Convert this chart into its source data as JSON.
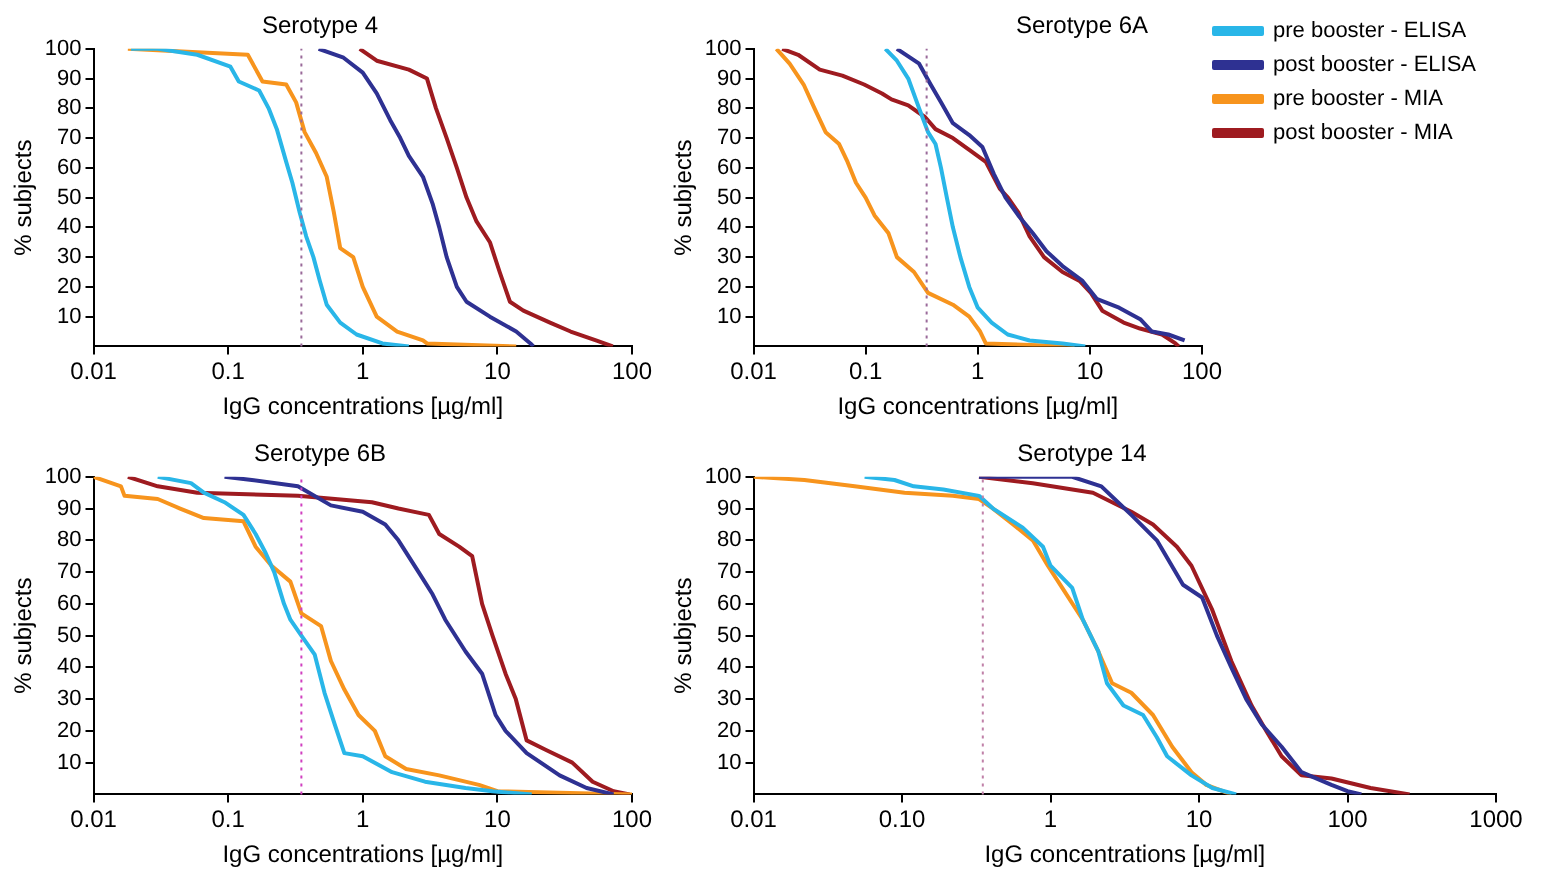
{
  "chart_data": [
    {
      "type": "line",
      "title": "Serotype 4",
      "xlabel": "IgG concentrations [µg/ml]",
      "ylabel": "% subjects",
      "log": "x",
      "grid": false,
      "legend": false,
      "marker": "none",
      "line_style": "solid",
      "xlim": [
        0.01,
        100
      ],
      "xticks": [
        0.01,
        0.1,
        1,
        10,
        100
      ],
      "ylim": [
        0,
        100
      ],
      "yticks": [
        10,
        20,
        30,
        40,
        50,
        60,
        70,
        80,
        90,
        100
      ],
      "ref_lines": [
        {
          "axis": "x",
          "value": 0.35,
          "color": "#9a6a9a",
          "line_style": "dotted"
        }
      ],
      "series": [
        {
          "color": "#29b6e8",
          "x": [
            0.019,
            0.03,
            0.059,
            0.104,
            0.12,
            0.17,
            0.2,
            0.23,
            0.27,
            0.3,
            0.34,
            0.38,
            0.43,
            0.48,
            0.54,
            0.68,
            0.9,
            1.4,
            2.2
          ],
          "values": [
            100,
            100,
            98,
            94,
            89,
            86,
            80,
            73,
            62,
            55,
            45,
            37,
            30,
            22,
            14,
            8,
            4,
            1,
            0
          ]
        },
        {
          "color": "#2e3192",
          "x": [
            0.47,
            0.72,
            1.0,
            1.27,
            1.6,
            1.9,
            2.2,
            2.8,
            3.3,
            3.7,
            4.2,
            5.0,
            5.9,
            8.8,
            13.8,
            17.6,
            18.5
          ],
          "values": [
            100,
            97,
            92,
            85,
            76,
            70,
            64,
            57,
            48,
            40,
            30,
            20,
            15,
            10,
            5,
            1,
            0
          ]
        },
        {
          "color": "#f7941d",
          "x": [
            0.018,
            0.14,
            0.18,
            0.27,
            0.32,
            0.37,
            0.45,
            0.54,
            0.61,
            0.68,
            0.85,
            1.0,
            1.27,
            1.8,
            2.8,
            3.0,
            13.8
          ],
          "values": [
            100,
            98,
            89,
            88,
            82,
            72,
            65,
            57,
            45,
            33,
            30,
            20,
            10,
            5,
            2,
            1,
            0
          ]
        },
        {
          "color": "#9e1b20",
          "x": [
            0.95,
            1.27,
            2.2,
            3.0,
            3.5,
            4.2,
            5.0,
            5.9,
            7.0,
            8.8,
            10.4,
            12.4,
            15.6,
            24.6,
            35,
            54,
            72
          ],
          "values": [
            100,
            96,
            93,
            90,
            80,
            70,
            60,
            50,
            42,
            35,
            25,
            15,
            12,
            8,
            5,
            2,
            0
          ]
        }
      ]
    },
    {
      "type": "line",
      "title": "Serotype 6A",
      "xlabel": "IgG concentrations [µg/ml]",
      "ylabel": "% subjects",
      "log": "x",
      "grid": false,
      "legend": "top right",
      "marker": "none",
      "line_style": "solid",
      "xlim": [
        0.01,
        100
      ],
      "xticks": [
        0.01,
        0.1,
        1,
        10,
        100
      ],
      "ylim": [
        0,
        100
      ],
      "yticks": [
        10,
        20,
        30,
        40,
        50,
        60,
        70,
        80,
        90,
        100
      ],
      "ref_lines": [
        {
          "axis": "x",
          "value": 0.35,
          "color": "#9a6a9a",
          "line_style": "dotted"
        }
      ],
      "series": [
        {
          "name": "pre booster - ELISA",
          "color": "#29b6e8",
          "x": [
            0.15,
            0.19,
            0.24,
            0.3,
            0.36,
            0.42,
            0.47,
            0.53,
            0.6,
            0.7,
            0.84,
            1.0,
            1.33,
            1.85,
            2.9,
            5.7,
            9.1
          ],
          "values": [
            100,
            96,
            90,
            80,
            72,
            68,
            60,
            50,
            40,
            30,
            20,
            13,
            8,
            4,
            2,
            1,
            0
          ]
        },
        {
          "name": "post booster - ELISA",
          "color": "#2e3192",
          "x": [
            0.19,
            0.3,
            0.38,
            0.47,
            0.6,
            0.84,
            1.1,
            1.39,
            1.77,
            2.3,
            3.1,
            4.1,
            5.7,
            8.6,
            11.5,
            18.2,
            28.4,
            35.7,
            50,
            70
          ],
          "values": [
            100,
            95,
            88,
            82,
            75,
            71,
            67,
            58,
            50,
            44,
            38,
            32,
            27,
            22,
            16,
            13,
            9,
            5,
            4,
            2
          ]
        },
        {
          "name": "pre booster - MIA",
          "color": "#f7941d",
          "x": [
            0.016,
            0.021,
            0.028,
            0.035,
            0.044,
            0.058,
            0.069,
            0.082,
            0.1,
            0.12,
            0.16,
            0.19,
            0.27,
            0.36,
            0.6,
            0.84,
            1.05,
            1.18,
            7.3
          ],
          "values": [
            100,
            95,
            88,
            80,
            72,
            68,
            62,
            55,
            50,
            44,
            38,
            30,
            25,
            18,
            14,
            10,
            5,
            1,
            0
          ]
        },
        {
          "name": "post booster - MIA",
          "color": "#9e1b20",
          "x": [
            0.018,
            0.025,
            0.039,
            0.062,
            0.097,
            0.14,
            0.17,
            0.24,
            0.34,
            0.42,
            0.6,
            0.84,
            1.18,
            1.57,
            1.86,
            2.3,
            2.9,
            3.9,
            5.7,
            8.1,
            10.2,
            12.9,
            20,
            28,
            44,
            58,
            62
          ],
          "values": [
            100,
            98,
            93,
            91,
            88,
            85,
            83,
            81,
            77,
            73,
            70,
            66,
            62,
            53,
            50,
            45,
            37,
            30,
            25,
            22,
            18,
            12,
            8,
            6,
            4,
            1,
            0
          ]
        }
      ]
    },
    {
      "type": "line",
      "title": "Serotype 6B",
      "xlabel": "IgG concentrations [µg/ml]",
      "ylabel": "% subjects",
      "log": "x",
      "grid": false,
      "legend": false,
      "marker": "none",
      "line_style": "solid",
      "xlim": [
        0.01,
        100
      ],
      "xticks": [
        0.01,
        0.1,
        1,
        10,
        100
      ],
      "ylim": [
        0,
        100
      ],
      "yticks": [
        10,
        20,
        30,
        40,
        50,
        60,
        70,
        80,
        90,
        100
      ],
      "ref_lines": [
        {
          "axis": "x",
          "value": 0.35,
          "color": "#d040c0",
          "line_style": "dotted"
        }
      ],
      "series": [
        {
          "color": "#29b6e8",
          "x": [
            0.03,
            0.053,
            0.066,
            0.094,
            0.13,
            0.16,
            0.19,
            0.22,
            0.26,
            0.29,
            0.35,
            0.44,
            0.52,
            0.62,
            0.73,
            1.0,
            1.65,
            2.9,
            5.8,
            9.2,
            18
          ],
          "values": [
            100,
            98,
            95,
            92,
            88,
            82,
            76,
            70,
            60,
            55,
            50,
            44,
            32,
            22,
            13,
            12,
            7,
            4,
            2,
            1,
            0
          ]
        },
        {
          "color": "#2e3192",
          "x": [
            0.094,
            0.15,
            0.33,
            0.58,
            1.0,
            1.47,
            1.84,
            2.6,
            3.3,
            4.1,
            5.8,
            7.7,
            9.7,
            11.5,
            16.5,
            29,
            46,
            73
          ],
          "values": [
            100,
            99,
            97,
            91,
            89,
            85,
            80,
            70,
            63,
            55,
            45,
            38,
            25,
            20,
            13,
            6,
            2,
            0
          ]
        },
        {
          "color": "#f7941d",
          "x": [
            0.01,
            0.016,
            0.017,
            0.03,
            0.044,
            0.066,
            0.13,
            0.16,
            0.21,
            0.29,
            0.35,
            0.49,
            0.58,
            0.73,
            0.93,
            1.23,
            1.47,
            2.1,
            3.7,
            7.3,
            10,
            100
          ],
          "values": [
            100,
            97,
            94,
            93,
            90,
            87,
            86,
            78,
            72,
            67,
            57,
            53,
            42,
            33,
            25,
            20,
            12,
            8,
            6,
            3,
            1,
            0
          ]
        },
        {
          "color": "#9e1b20",
          "x": [
            0.018,
            0.03,
            0.059,
            0.33,
            1.17,
            1.84,
            3.1,
            3.7,
            5.2,
            6.5,
            7.7,
            9.2,
            11.5,
            13.7,
            16.5,
            23,
            36,
            51,
            73,
            96
          ],
          "values": [
            100,
            97,
            95,
            94,
            92,
            90,
            88,
            82,
            78,
            75,
            60,
            50,
            38,
            30,
            17,
            14,
            10,
            4,
            1,
            0
          ]
        }
      ]
    },
    {
      "type": "line",
      "title": "Serotype 14",
      "xlabel": "IgG concentrations [µg/ml]",
      "ylabel": "% subjects",
      "log": "x",
      "grid": false,
      "legend": false,
      "marker": "none",
      "line_style": "solid",
      "xlim": [
        0.01,
        1000
      ],
      "xticks": [
        0.01,
        {
          "value": 0.1,
          "label": "0.10"
        },
        1,
        10,
        100,
        1000
      ],
      "ylim": [
        0,
        100
      ],
      "yticks": [
        10,
        20,
        30,
        40,
        50,
        60,
        70,
        80,
        90,
        100
      ],
      "ref_lines": [
        {
          "axis": "x",
          "value": 0.35,
          "color": "#c080a8",
          "line_style": "dotted"
        }
      ],
      "series": [
        {
          "color": "#29b6e8",
          "x": [
            0.056,
            0.089,
            0.12,
            0.19,
            0.33,
            0.41,
            0.65,
            0.89,
            1.0,
            1.4,
            1.65,
            2.1,
            2.4,
            3.1,
            4.2,
            5.2,
            6.1,
            8.9,
            12.3,
            17.8
          ],
          "values": [
            100,
            99,
            97,
            96,
            94,
            90,
            84,
            78,
            72,
            65,
            55,
            45,
            35,
            28,
            25,
            18,
            12,
            6,
            2,
            0
          ]
        },
        {
          "color": "#2e3192",
          "x": [
            0.33,
            1.4,
            2.2,
            3.5,
            5.2,
            7.8,
            10.5,
            13.2,
            16.5,
            20.8,
            26.5,
            36,
            49,
            78,
            100,
            124
          ],
          "values": [
            100,
            100,
            97,
            88,
            80,
            66,
            62,
            50,
            40,
            30,
            22,
            15,
            7,
            3,
            1,
            0
          ]
        },
        {
          "color": "#f7941d",
          "x": [
            0.01,
            0.022,
            0.048,
            0.104,
            0.22,
            0.33,
            0.41,
            0.56,
            0.76,
            0.96,
            1.2,
            1.65,
            2.1,
            2.6,
            3.5,
            4.9,
            6.6,
            8.9,
            11.2,
            16.5
          ],
          "values": [
            100,
            99,
            97,
            95,
            94,
            93,
            90,
            85,
            80,
            72,
            65,
            55,
            45,
            35,
            32,
            25,
            15,
            7,
            3,
            0
          ]
        },
        {
          "color": "#9e1b20",
          "x": [
            0.33,
            0.76,
            1.93,
            3.5,
            4.9,
            7.1,
            8.9,
            12.3,
            16.5,
            22.6,
            28.4,
            36,
            49,
            78,
            143,
            262
          ],
          "values": [
            100,
            98,
            95,
            89,
            85,
            78,
            72,
            58,
            42,
            28,
            20,
            12,
            6,
            5,
            2,
            0
          ]
        }
      ]
    }
  ]
}
